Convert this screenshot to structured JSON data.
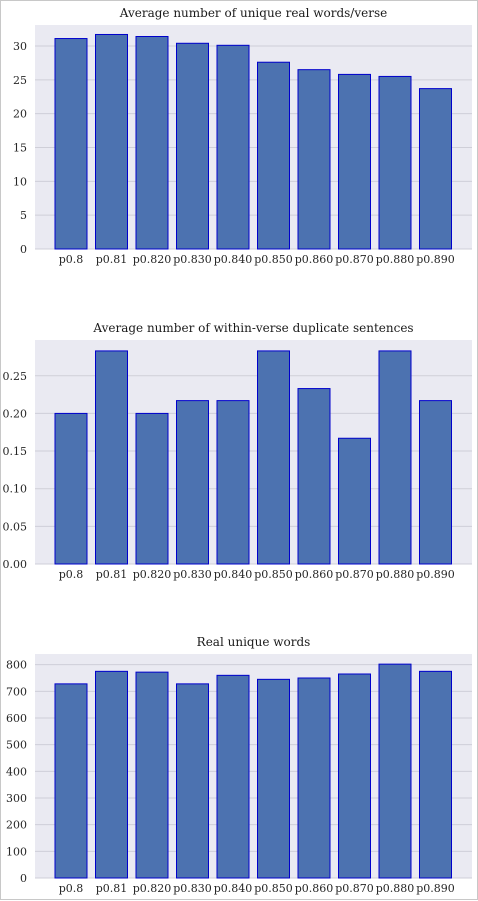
{
  "chart_data": [
    {
      "type": "bar",
      "title": "Average number of unique real words/verse",
      "categories": [
        "p0.8",
        "p0.81",
        "p0.820",
        "p0.830",
        "p0.840",
        "p0.850",
        "p0.860",
        "p0.870",
        "p0.880",
        "p0.890"
      ],
      "values": [
        31.1,
        31.7,
        31.4,
        30.4,
        30.1,
        27.6,
        26.5,
        25.8,
        25.5,
        23.7
      ],
      "ylim": [
        0,
        33.1
      ],
      "yticks": [
        0,
        5,
        10,
        15,
        20,
        25,
        30
      ],
      "tick_labels": [
        "0",
        "5",
        "10",
        "15",
        "20",
        "25",
        "30"
      ],
      "xlabel": "",
      "ylabel": "",
      "bar_color": "#4c72b0",
      "edge_color": "#0000cc",
      "grid": true
    },
    {
      "type": "bar",
      "title": "Average number of within-verse duplicate sentences",
      "categories": [
        "p0.8",
        "p0.81",
        "p0.820",
        "p0.830",
        "p0.840",
        "p0.850",
        "p0.860",
        "p0.870",
        "p0.880",
        "p0.890"
      ],
      "values": [
        0.2,
        0.283,
        0.2,
        0.217,
        0.217,
        0.283,
        0.233,
        0.167,
        0.283,
        0.217
      ],
      "ylim": [
        0,
        0.2975
      ],
      "yticks": [
        0,
        0.05,
        0.1,
        0.15,
        0.2,
        0.25
      ],
      "tick_labels": [
        "0.00",
        "0.05",
        "0.10",
        "0.15",
        "0.20",
        "0.25"
      ],
      "xlabel": "",
      "ylabel": "",
      "bar_color": "#4c72b0",
      "edge_color": "#0000cc",
      "grid": true
    },
    {
      "type": "bar",
      "title": "Real unique words",
      "categories": [
        "p0.8",
        "p0.81",
        "p0.820",
        "p0.830",
        "p0.840",
        "p0.850",
        "p0.860",
        "p0.870",
        "p0.880",
        "p0.890"
      ],
      "values": [
        728,
        775,
        772,
        728,
        760,
        745,
        750,
        765,
        802,
        775
      ],
      "ylim": [
        0,
        840
      ],
      "yticks": [
        0,
        100,
        200,
        300,
        400,
        500,
        600,
        700,
        800
      ],
      "tick_labels": [
        "0",
        "100",
        "200",
        "300",
        "400",
        "500",
        "600",
        "700",
        "800"
      ],
      "xlabel": "",
      "ylabel": "",
      "bar_color": "#4c72b0",
      "edge_color": "#0000cc",
      "grid": true
    }
  ]
}
